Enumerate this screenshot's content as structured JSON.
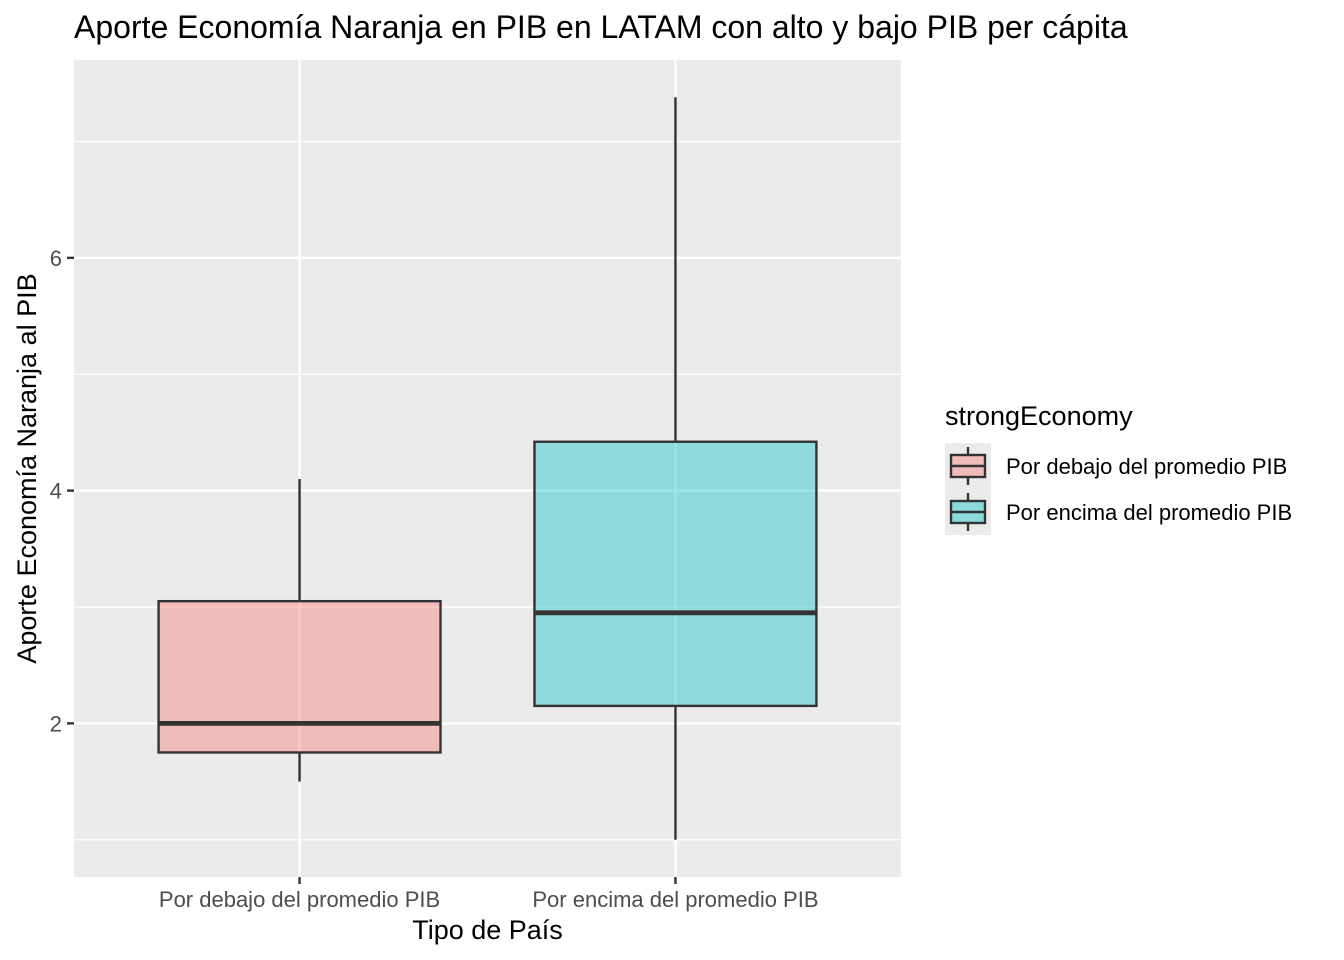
{
  "chart_data": {
    "type": "boxplot",
    "title": "Aporte Economía Naranja en PIB en LATAM con alto y bajo PIB per cápita",
    "xlabel": "Tipo de País",
    "ylabel": "Aporte Economía Naranja al PIB",
    "categories": [
      "Por debajo del promedio PIB",
      "Por encima del promedio PIB"
    ],
    "boxes": [
      {
        "category": "Por debajo del promedio PIB",
        "min": 1.5,
        "q1": 1.75,
        "median": 2.0,
        "q3": 3.05,
        "max": 4.1,
        "color": "#F8766D"
      },
      {
        "category": "Por encima del promedio PIB",
        "min": 1.0,
        "q1": 2.15,
        "median": 2.95,
        "q3": 4.42,
        "max": 7.38,
        "color": "#00BFC4"
      }
    ],
    "ylim": [
      0.68,
      7.7
    ],
    "yticks": [
      2,
      4,
      6
    ],
    "ytick_labels": [
      "2",
      "4",
      "6"
    ],
    "yminor": [
      1,
      3,
      5,
      7
    ],
    "grid": true,
    "legend": {
      "title": "strongEconomy",
      "position": "right",
      "entries": [
        "Por debajo del promedio PIB",
        "Por encima del promedio PIB"
      ]
    }
  },
  "colors": {
    "panel_bg": "#EBEBEB",
    "grid": "#FFFFFF",
    "box_stroke": "#333333"
  }
}
